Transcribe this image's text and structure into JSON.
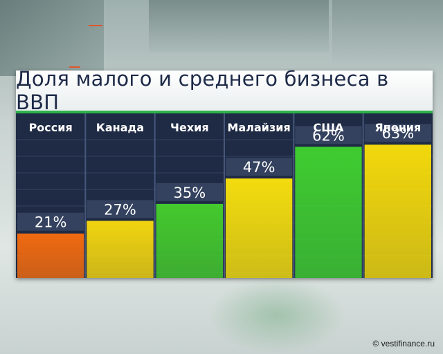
{
  "chart_data": {
    "type": "bar",
    "title": "Доля малого и среднего бизнеса в ВВП",
    "categories": [
      "Россия",
      "Канада",
      "Чехия",
      "Малайзия",
      "США",
      "Япония"
    ],
    "values": [
      21,
      27,
      35,
      47,
      62,
      63
    ],
    "value_labels": [
      "21%",
      "27%",
      "35%",
      "47%",
      "62%",
      "63%"
    ],
    "ylim": [
      0,
      67
    ],
    "bar_colors": [
      "#f06a10",
      "#f1d410",
      "#44c92d",
      "#f3dc0e",
      "#3fcc30",
      "#f2d80c"
    ],
    "grid": true
  },
  "copyright": "© vestifinance.ru"
}
